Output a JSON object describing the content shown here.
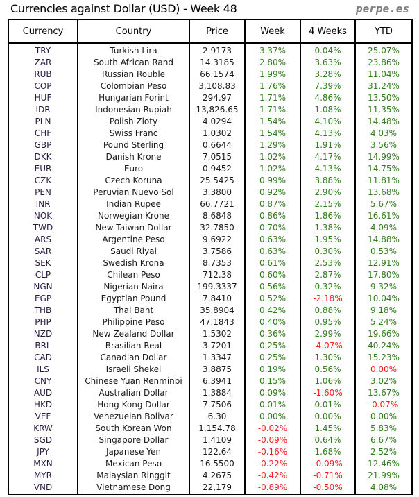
{
  "title": "Currencies against Dollar (USD) - Week 48",
  "brand": "perpe.es",
  "colors": {
    "positive": "#2f7d1a",
    "negative": "#ff1a1a"
  },
  "headers": [
    "Currency",
    "Country",
    "Price",
    "Week",
    "4 Weeks",
    "YTD"
  ],
  "rows": [
    {
      "code": "TRY",
      "country": "Turkish Lira",
      "price": "2.9173",
      "week": "3.37%",
      "weeks4": "0.04%",
      "ytd": "25.07%"
    },
    {
      "code": "ZAR",
      "country": "South African Rand",
      "price": "14.3185",
      "week": "2.80%",
      "weeks4": "3.63%",
      "ytd": "23.86%"
    },
    {
      "code": "RUB",
      "country": "Russian Rouble",
      "price": "66.1574",
      "week": "1.99%",
      "weeks4": "3.28%",
      "ytd": "11.04%"
    },
    {
      "code": "COP",
      "country": "Colombian Peso",
      "price": "3,108.83",
      "week": "1.76%",
      "weeks4": "7.39%",
      "ytd": "31.24%"
    },
    {
      "code": "HUF",
      "country": "Hungarian Forint",
      "price": "294.97",
      "week": "1.71%",
      "weeks4": "4.86%",
      "ytd": "13.50%"
    },
    {
      "code": "IDR",
      "country": "Indonesian Rupiah",
      "price": "13,826.65",
      "week": "1.71%",
      "weeks4": "1.08%",
      "ytd": "11.35%"
    },
    {
      "code": "PLN",
      "country": "Polish Zloty",
      "price": "4.0294",
      "week": "1.54%",
      "weeks4": "4.10%",
      "ytd": "14.48%"
    },
    {
      "code": "CHF",
      "country": "Swiss Franc",
      "price": "1.0302",
      "week": "1.54%",
      "weeks4": "4.13%",
      "ytd": "4.03%"
    },
    {
      "code": "GBP",
      "country": "Pound Sterling",
      "price": "0.6644",
      "week": "1.29%",
      "weeks4": "1.91%",
      "ytd": "3.56%"
    },
    {
      "code": "DKK",
      "country": "Danish Krone",
      "price": "7.0515",
      "week": "1.02%",
      "weeks4": "4.17%",
      "ytd": "14.99%"
    },
    {
      "code": "EUR",
      "country": "Euro",
      "price": "0.9452",
      "week": "1.02%",
      "weeks4": "4.13%",
      "ytd": "14.75%"
    },
    {
      "code": "CZK",
      "country": "Czech Koruna",
      "price": "25.5425",
      "week": "0.99%",
      "weeks4": "3.88%",
      "ytd": "11.81%"
    },
    {
      "code": "PEN",
      "country": "Peruvian Nuevo Sol",
      "price": "3.3800",
      "week": "0.92%",
      "weeks4": "2.90%",
      "ytd": "13.68%"
    },
    {
      "code": "INR",
      "country": "Indian Rupee",
      "price": "66.7721",
      "week": "0.87%",
      "weeks4": "2.15%",
      "ytd": "5.67%"
    },
    {
      "code": "NOK",
      "country": "Norwegian Krone",
      "price": "8.6848",
      "week": "0.86%",
      "weeks4": "1.86%",
      "ytd": "16.61%"
    },
    {
      "code": "TWD",
      "country": "New Taiwan Dollar",
      "price": "32.7850",
      "week": "0.70%",
      "weeks4": "1.38%",
      "ytd": "4.09%"
    },
    {
      "code": "ARS",
      "country": "Argentine Peso",
      "price": "9.6922",
      "week": "0.63%",
      "weeks4": "1.95%",
      "ytd": "14.88%"
    },
    {
      "code": "SAR",
      "country": "Saudi Riyal",
      "price": "3.7586",
      "week": "0.63%",
      "weeks4": "0.30%",
      "ytd": "0.53%"
    },
    {
      "code": "SEK",
      "country": "Swedish Krona",
      "price": "8.7353",
      "week": "0.61%",
      "weeks4": "2.53%",
      "ytd": "12.91%"
    },
    {
      "code": "CLP",
      "country": "Chilean Peso",
      "price": "712.38",
      "week": "0.60%",
      "weeks4": "2.87%",
      "ytd": "17.80%"
    },
    {
      "code": "NGN",
      "country": "Nigerian Naira",
      "price": "199.3337",
      "week": "0.56%",
      "weeks4": "0.32%",
      "ytd": "9.32%"
    },
    {
      "code": "EGP",
      "country": "Egyptian Pound",
      "price": "7.8410",
      "week": "0.52%",
      "weeks4": "-2.18%",
      "ytd": "10.04%"
    },
    {
      "code": "THB",
      "country": "Thai Baht",
      "price": "35.8904",
      "week": "0.42%",
      "weeks4": "0.88%",
      "ytd": "9.18%"
    },
    {
      "code": "PHP",
      "country": "Philippine Peso",
      "price": "47.1843",
      "week": "0.40%",
      "weeks4": "0.95%",
      "ytd": "5.24%"
    },
    {
      "code": "NZD",
      "country": "New Zealand Dollar",
      "price": "1.5302",
      "week": "0.36%",
      "weeks4": "2.99%",
      "ytd": "19.66%"
    },
    {
      "code": "BRL",
      "country": "Brasilian Real",
      "price": "3.7201",
      "week": "0.25%",
      "weeks4": "-4.07%",
      "ytd": "40.24%"
    },
    {
      "code": "CAD",
      "country": "Canadian Dollar",
      "price": "1.3347",
      "week": "0.25%",
      "weeks4": "1.30%",
      "ytd": "15.23%"
    },
    {
      "code": "ILS",
      "country": "Israeli Shekel",
      "price": "3.8875",
      "week": "0.19%",
      "weeks4": "0.56%",
      "ytd": "0.00%",
      "ytd_negative": true
    },
    {
      "code": "CNY",
      "country": "Chinese Yuan Renminbi",
      "price": "6.3941",
      "week": "0.15%",
      "weeks4": "1.06%",
      "ytd": "3.02%"
    },
    {
      "code": "AUD",
      "country": "Australian Dollar",
      "price": "1.3884",
      "week": "0.09%",
      "weeks4": "-1.60%",
      "ytd": "13.67%"
    },
    {
      "code": "HKD",
      "country": "Hong Kong Dollar",
      "price": "7.7506",
      "week": "0.01%",
      "weeks4": "0.01%",
      "ytd": "-0.07%"
    },
    {
      "code": "VEF",
      "country": "Venezuelan Bolivar",
      "price": "6.30",
      "week": "0.00%",
      "weeks4": "0.00%",
      "ytd": "0.00%"
    },
    {
      "code": "KRW",
      "country": "South Korean Won",
      "price": "1,154.78",
      "week": "-0.02%",
      "weeks4": "1.45%",
      "ytd": "5.83%"
    },
    {
      "code": "SGD",
      "country": "Singapore Dollar",
      "price": "1.4109",
      "week": "-0.09%",
      "weeks4": "0.64%",
      "ytd": "6.67%"
    },
    {
      "code": "JPY",
      "country": "Japanese Yen",
      "price": "122.64",
      "week": "-0.16%",
      "weeks4": "1.68%",
      "ytd": "2.52%"
    },
    {
      "code": "MXN",
      "country": "Mexican Peso",
      "price": "16.5500",
      "week": "-0.22%",
      "weeks4": "-0.09%",
      "ytd": "12.46%"
    },
    {
      "code": "MYR",
      "country": "Malaysian Ringgit",
      "price": "4.2675",
      "week": "-0.42%",
      "weeks4": "-0.71%",
      "ytd": "21.99%"
    },
    {
      "code": "VND",
      "country": "Vietnamese Dong",
      "price": "22,179",
      "week": "-0.89%",
      "weeks4": "-0.50%",
      "ytd": "4.08%"
    }
  ]
}
